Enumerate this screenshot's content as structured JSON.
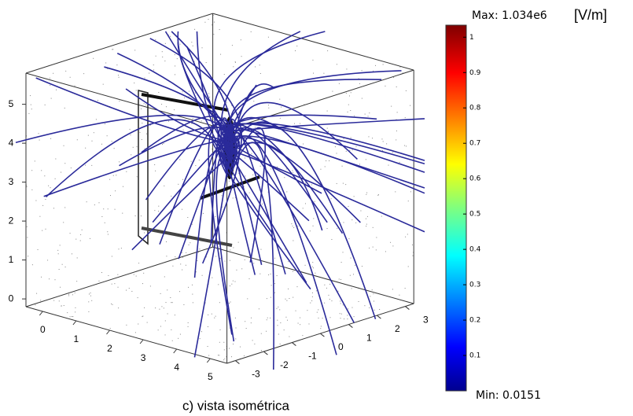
{
  "chart_data": {
    "type": "streamline3d",
    "caption": "c) vista isométrica",
    "xlim": [
      -0.5,
      5.5
    ],
    "xticks": [
      0,
      1,
      2,
      3,
      4,
      5
    ],
    "ylim": [
      -3.3,
      3.3
    ],
    "yticks": [
      -3,
      -2,
      -1,
      0,
      1,
      2,
      3
    ],
    "zlim": [
      -0.2,
      5.8
    ],
    "zticks": [
      0,
      1,
      2,
      3,
      4,
      5
    ],
    "colorbar": {
      "max_label": "Max: 1.034e6",
      "unit": "[V/m]",
      "min_label": "Min: 0.0151",
      "lim": [
        0,
        1.034
      ],
      "ticks": [
        0.1,
        0.2,
        0.3,
        0.4,
        0.5,
        0.6,
        0.7,
        0.8,
        0.9,
        1
      ]
    },
    "line_color": "#2a2a9a"
  }
}
